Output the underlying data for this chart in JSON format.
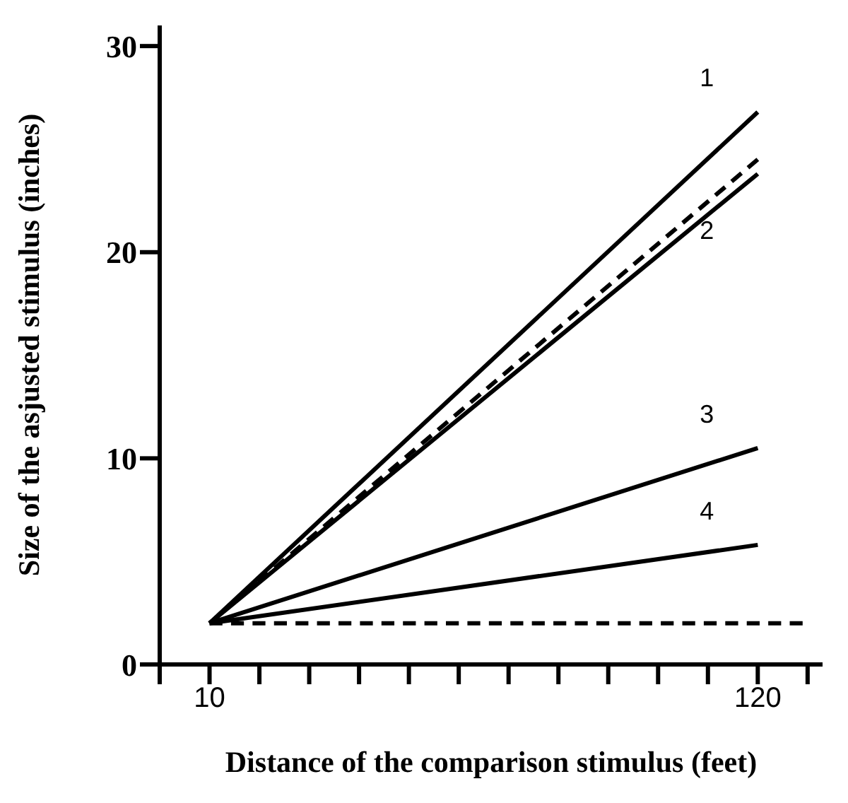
{
  "chart_data": {
    "type": "line",
    "xlabel": "Distance of the comparison stimulus (feet)",
    "ylabel": "Size of the asjusted stimulus (inches)",
    "xlim": [
      0,
      133
    ],
    "ylim": [
      0,
      31
    ],
    "xticks": [
      {
        "value": 0,
        "label": null
      },
      10,
      {
        "value": 20,
        "label": null
      },
      {
        "value": 30,
        "label": null
      },
      {
        "value": 40,
        "label": null
      },
      {
        "value": 50,
        "label": null
      },
      {
        "value": 60,
        "label": null
      },
      {
        "value": 70,
        "label": null
      },
      {
        "value": 80,
        "label": null
      },
      {
        "value": 90,
        "label": null
      },
      {
        "value": 100,
        "label": null
      },
      {
        "value": 110,
        "label": null
      },
      120,
      {
        "value": 130,
        "label": null
      }
    ],
    "yticks": [
      0,
      10,
      20,
      30
    ],
    "marker": "none",
    "series": [
      {
        "name": "1",
        "color": "#000000",
        "x": [
          10,
          120
        ],
        "values": [
          2,
          26.8
        ],
        "line_style": "solid"
      },
      {
        "color": "#000000",
        "x": [
          10,
          120
        ],
        "values": [
          2,
          24.5
        ],
        "line_style": "dashed"
      },
      {
        "name": "2",
        "color": "#000000",
        "x": [
          10,
          120
        ],
        "values": [
          2,
          23.8
        ],
        "line_style": "solid"
      },
      {
        "name": "3",
        "color": "#000000",
        "x": [
          10,
          120
        ],
        "values": [
          2,
          10.5
        ],
        "line_style": "solid"
      },
      {
        "name": "4",
        "color": "#000000",
        "x": [
          10,
          120
        ],
        "values": [
          2,
          5.8
        ],
        "line_style": "solid"
      },
      {
        "color": "#000000",
        "x": [
          10,
          129
        ],
        "values": [
          2,
          2
        ],
        "line_style": "dashed"
      }
    ]
  }
}
